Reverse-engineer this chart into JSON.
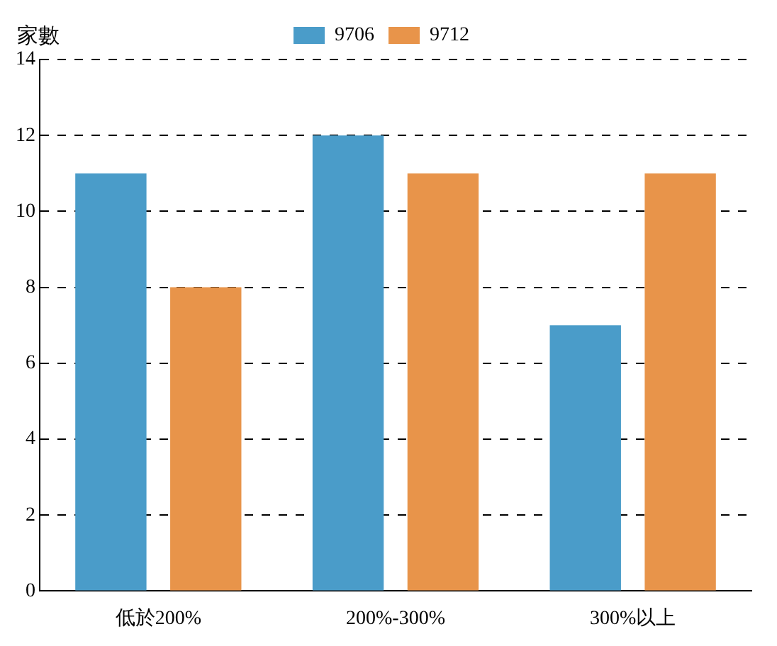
{
  "chart_data": {
    "type": "bar",
    "ylabel": "家數",
    "categories": [
      "低於200%",
      "200%-300%",
      "300%以上"
    ],
    "series": [
      {
        "name": "9706",
        "color": "#4a9cc9",
        "values": [
          11,
          12,
          7
        ]
      },
      {
        "name": "9712",
        "color": "#e8944a",
        "values": [
          8,
          11,
          11
        ]
      }
    ],
    "ylim": [
      0,
      14
    ],
    "yticks": [
      0,
      2,
      4,
      6,
      8,
      10,
      12,
      14
    ],
    "grid": "y",
    "legend": "top"
  }
}
